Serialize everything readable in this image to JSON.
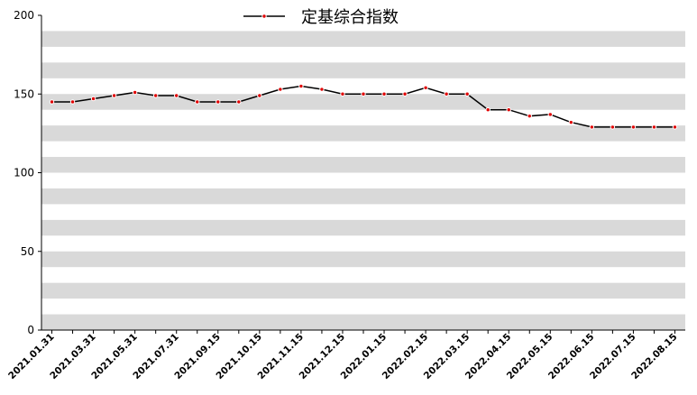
{
  "chart_data": {
    "type": "line",
    "categories": [
      "2021.01.31",
      null,
      "2021.03.31",
      null,
      "2021.05.31",
      null,
      "2021.07.31",
      null,
      "2021.09.15",
      null,
      "2021.10.15",
      null,
      "2021.11.15",
      null,
      "2021.12.15",
      null,
      "2022.01.15",
      null,
      "2022.02.15",
      null,
      "2022.03.15",
      null,
      "2022.04.15",
      null,
      "2022.05.15",
      null,
      "2022.06.15",
      null,
      "2022.07.15",
      null,
      "2022.08.15"
    ],
    "series": [
      {
        "name": "定基综合指数",
        "color": "#000000",
        "marker_color": "#e00000",
        "values": [
          145,
          145,
          147,
          149,
          151,
          149,
          149,
          145,
          145,
          145,
          149,
          153,
          155,
          153,
          150,
          150,
          150,
          150,
          154,
          150,
          150,
          140,
          140,
          136,
          137,
          132,
          129,
          129,
          129,
          129,
          129
        ]
      }
    ],
    "ylim": [
      0,
      200
    ],
    "yticks": [
      0,
      50,
      100,
      150,
      200
    ],
    "band_step": 10,
    "band_color": "#d9d9d9",
    "legend": "top"
  }
}
